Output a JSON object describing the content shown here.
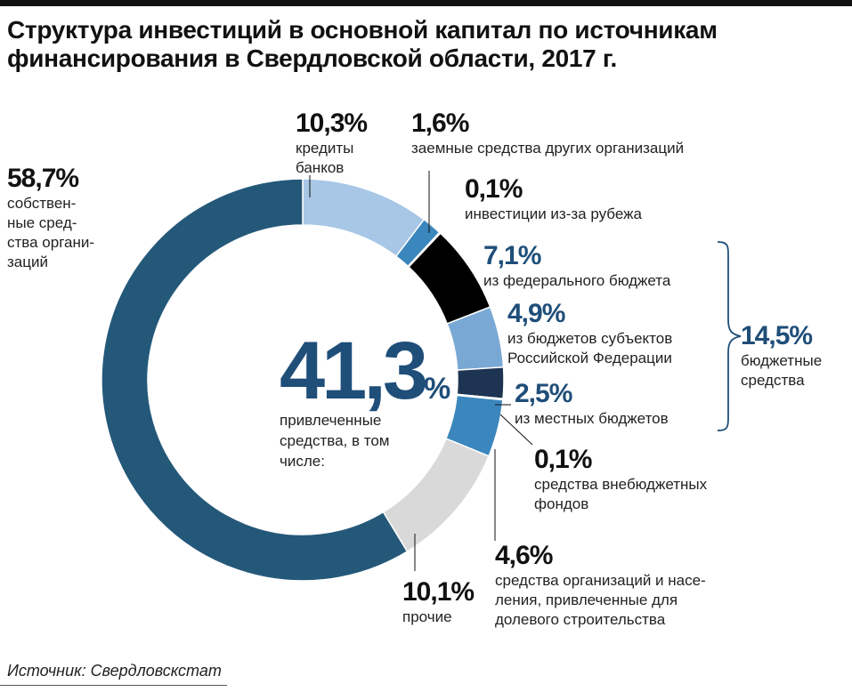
{
  "title": "Структура инвестиций в основной капитал по источникам финансирования в Свердловской области, 2017 г.",
  "source": "Источник: Свердловскстат",
  "colors": {
    "own_funds": "#245879",
    "bank_credit": "#a8c7e6",
    "other_org_loans": "#3a86bd",
    "foreign": "#000000",
    "federal": "#000000",
    "regional": "#7aa8d4",
    "local": "#1d3552",
    "extrabudget": "#000000",
    "shared_construction": "#3a86bd",
    "other": "#d9d9d9",
    "accent_text": "#1f4e79"
  },
  "center": {
    "value": "41,3",
    "sign": "%",
    "label_lines": [
      "привлеченные",
      "средства, в том",
      "числе:"
    ]
  },
  "bracket_group": {
    "value": "14,5%",
    "label_lines": [
      "бюджетные",
      "средства"
    ]
  },
  "chart_data": {
    "type": "pie",
    "variant": "donut",
    "title": "Структура инвестиций в основной капитал по источникам финансирования в Свердловской области, 2017 г.",
    "unit": "%",
    "segments": [
      {
        "key": "bank_credit",
        "value": 10.3,
        "value_label": "10,3%",
        "label_lines": [
          "кредиты",
          "банков"
        ]
      },
      {
        "key": "other_org_loans",
        "value": 1.6,
        "value_label": "1,6%",
        "label_lines": [
          "заемные средства других организаций"
        ]
      },
      {
        "key": "foreign",
        "value": 0.1,
        "value_label": "0,1%",
        "label_lines": [
          "инвестиции из-за рубежа"
        ]
      },
      {
        "key": "federal",
        "value": 7.1,
        "value_label": "7,1%",
        "label_lines": [
          "из федерального бюджета"
        ]
      },
      {
        "key": "regional",
        "value": 4.9,
        "value_label": "4,9%",
        "label_lines": [
          "из бюджетов субъектов",
          "Российской Федерации"
        ]
      },
      {
        "key": "local",
        "value": 2.5,
        "value_label": "2,5%",
        "label_lines": [
          "из местных бюджетов"
        ]
      },
      {
        "key": "extrabudget",
        "value": 0.1,
        "value_label": "0,1%",
        "label_lines": [
          "средства внебюджетных",
          "фондов"
        ]
      },
      {
        "key": "shared_construction",
        "value": 4.6,
        "value_label": "4,6%",
        "label_lines": [
          "средства организаций и насе-",
          "ления, привлеченные для",
          "долевого строительства"
        ]
      },
      {
        "key": "other",
        "value": 10.1,
        "value_label": "10,1%",
        "label_lines": [
          "прочие"
        ]
      },
      {
        "key": "own_funds",
        "value": 58.7,
        "value_label": "58,7%",
        "label_lines": [
          "собствен-",
          "ные сред-",
          "ства органи-",
          "заций"
        ]
      }
    ]
  }
}
